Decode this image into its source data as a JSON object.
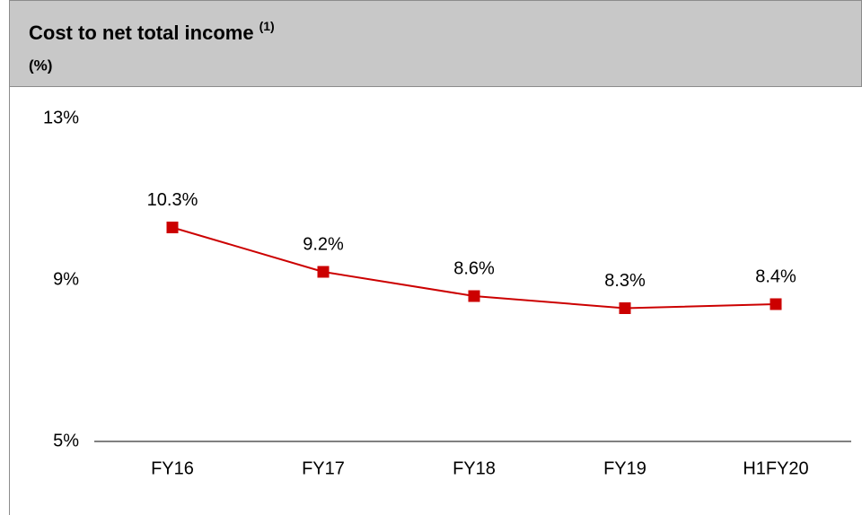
{
  "chart_data": {
    "type": "line",
    "title": "Cost to net total income",
    "title_note": "(1)",
    "subtitle": "(%)",
    "categories": [
      "FY16",
      "FY17",
      "FY18",
      "FY19",
      "H1FY20"
    ],
    "values": [
      10.3,
      9.2,
      8.6,
      8.3,
      8.4
    ],
    "value_labels": [
      "10.3%",
      "9.2%",
      "8.6%",
      "8.3%",
      "8.4%"
    ],
    "color": "#cc0000",
    "ylim": [
      5,
      13
    ],
    "yticks": [
      {
        "value": 5,
        "label": "5%"
      },
      {
        "value": 9,
        "label": "9%"
      },
      {
        "value": 13,
        "label": "13%"
      }
    ]
  }
}
